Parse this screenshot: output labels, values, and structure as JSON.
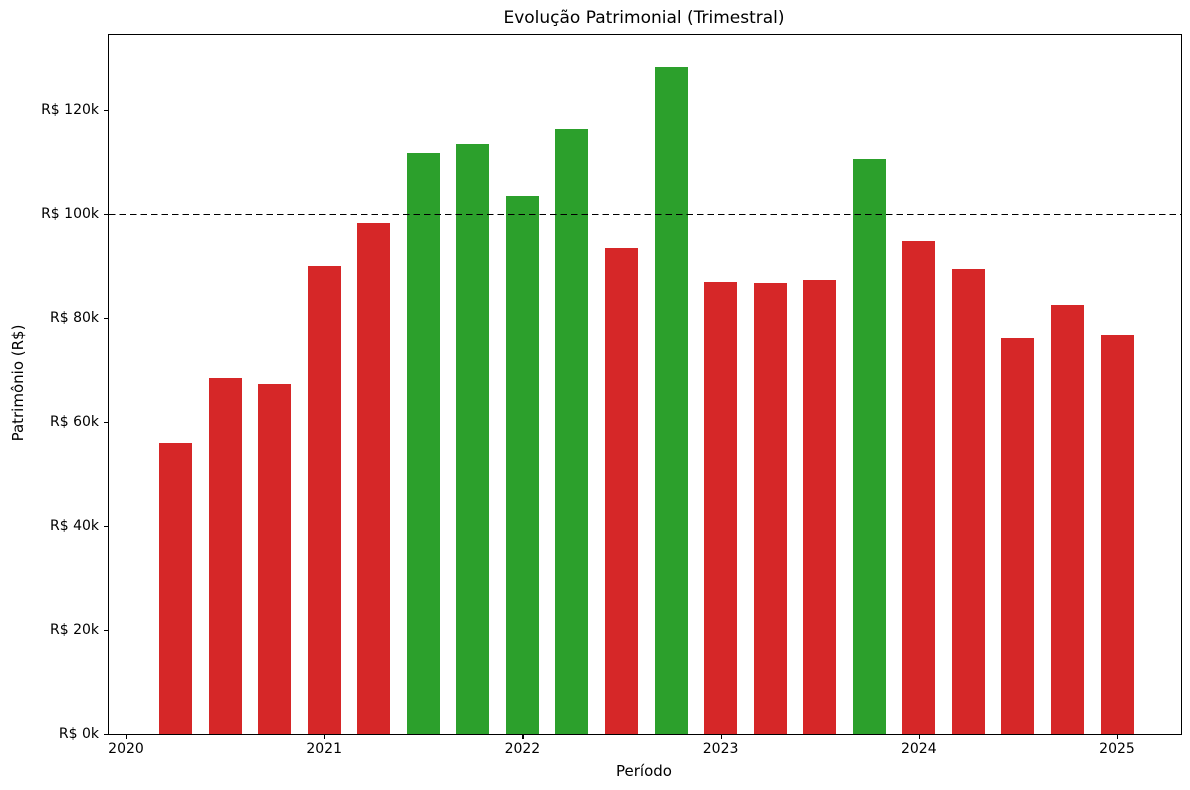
{
  "chart_data": {
    "type": "bar",
    "title": "Evolução Patrimonial (Trimestral)",
    "xlabel": "Período",
    "ylabel": "Patrimônio (R$)",
    "categories": [
      "2020-Q2",
      "2020-Q3",
      "2020-Q4",
      "2021-Q1",
      "2021-Q2",
      "2021-Q3",
      "2021-Q4",
      "2022-Q1",
      "2022-Q2",
      "2022-Q3",
      "2022-Q4",
      "2023-Q1",
      "2023-Q2",
      "2023-Q3",
      "2023-Q4",
      "2024-Q1",
      "2024-Q2",
      "2024-Q3",
      "2024-Q4",
      "2025-Q1"
    ],
    "values": [
      55900,
      68400,
      67300,
      90000,
      98300,
      111700,
      113500,
      103400,
      116300,
      93500,
      128300,
      87000,
      86700,
      87300,
      110600,
      94800,
      89500,
      76200,
      82400,
      76800
    ],
    "color_threshold": 100000,
    "bar_color_above": "#2ca02c",
    "bar_color_below": "#d62728",
    "reference_line": {
      "value": 100000,
      "color": "#000000",
      "style": "dashed"
    },
    "ylim": [
      0,
      134400
    ],
    "yticks": [
      {
        "value": 0,
        "label": "R$ 0k"
      },
      {
        "value": 20000,
        "label": "R$ 20k"
      },
      {
        "value": 40000,
        "label": "R$ 40k"
      },
      {
        "value": 60000,
        "label": "R$ 60k"
      },
      {
        "value": 80000,
        "label": "R$ 80k"
      },
      {
        "value": 100000,
        "label": "R$ 100k"
      },
      {
        "value": 120000,
        "label": "R$ 120k"
      }
    ],
    "xticks": [
      {
        "label": "2020",
        "quarter_index": 0
      },
      {
        "label": "2021",
        "quarter_index": 4
      },
      {
        "label": "2022",
        "quarter_index": 8
      },
      {
        "label": "2023",
        "quarter_index": 12
      },
      {
        "label": "2024",
        "quarter_index": 16
      },
      {
        "label": "2025",
        "quarter_index": 20
      }
    ],
    "grid": false,
    "legend": null
  }
}
